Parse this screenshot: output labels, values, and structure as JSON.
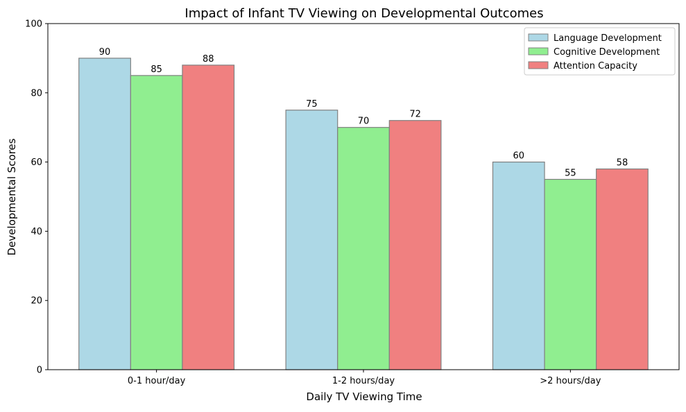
{
  "chart_data": {
    "type": "bar",
    "title": "Impact of Infant TV Viewing on Developmental Outcomes",
    "xlabel": "Daily TV Viewing Time",
    "ylabel": "Developmental Scores",
    "categories": [
      "0-1 hour/day",
      "1-2 hours/day",
      ">2 hours/day"
    ],
    "series": [
      {
        "name": "Language Development",
        "values": [
          90,
          75,
          60
        ],
        "color": "#add8e6"
      },
      {
        "name": "Cognitive Development",
        "values": [
          85,
          70,
          55
        ],
        "color": "#90ee90"
      },
      {
        "name": "Attention Capacity",
        "values": [
          88,
          72,
          58
        ],
        "color": "#f08080"
      }
    ],
    "ylim": [
      0,
      100
    ],
    "yticks": [
      0,
      20,
      40,
      60,
      80,
      100
    ],
    "grid": false,
    "legend": "top-right",
    "bar_edge_color": "#808080"
  }
}
